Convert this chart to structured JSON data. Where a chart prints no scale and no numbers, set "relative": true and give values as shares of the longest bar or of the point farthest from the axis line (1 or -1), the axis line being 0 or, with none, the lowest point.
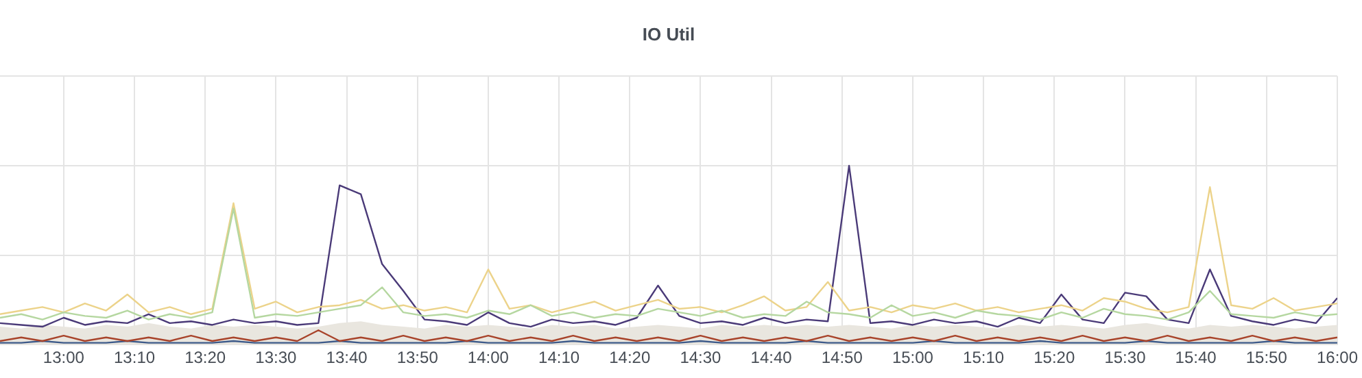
{
  "chart_data": {
    "type": "line",
    "title": "IO Util",
    "relative": true,
    "grid": true,
    "legend": false,
    "marker": "none",
    "xlim": [
      12.85,
      16.0
    ],
    "xticks": [
      {
        "value": 13,
        "label": "13:00"
      },
      {
        "value": 13.1667,
        "label": "13:10"
      },
      {
        "value": 13.3333,
        "label": "13:20"
      },
      {
        "value": 13.5,
        "label": "13:30"
      },
      {
        "value": 13.6667,
        "label": "13:40"
      },
      {
        "value": 13.8333,
        "label": "13:50"
      },
      {
        "value": 14,
        "label": "14:00"
      },
      {
        "value": 14.1667,
        "label": "14:10"
      },
      {
        "value": 14.3333,
        "label": "14:20"
      },
      {
        "value": 14.5,
        "label": "14:30"
      },
      {
        "value": 14.6667,
        "label": "14:40"
      },
      {
        "value": 14.8333,
        "label": "14:50"
      },
      {
        "value": 15,
        "label": "15:00"
      },
      {
        "value": 15.1667,
        "label": "15:10"
      },
      {
        "value": 15.3333,
        "label": "15:20"
      },
      {
        "value": 15.5,
        "label": "15:30"
      },
      {
        "value": 15.6667,
        "label": "15:40"
      },
      {
        "value": 15.8333,
        "label": "15:50"
      },
      {
        "value": 16,
        "label": "16:00"
      }
    ],
    "x": [
      12.85,
      12.9,
      12.95,
      13.0,
      13.05,
      13.1,
      13.15,
      13.2,
      13.25,
      13.3,
      13.35,
      13.4,
      13.45,
      13.5,
      13.55,
      13.6,
      13.65,
      13.7,
      13.75,
      13.8,
      13.85,
      13.9,
      13.95,
      14.0,
      14.05,
      14.1,
      14.15,
      14.2,
      14.25,
      14.3,
      14.35,
      14.4,
      14.45,
      14.5,
      14.55,
      14.6,
      14.65,
      14.7,
      14.75,
      14.8,
      14.85,
      14.9,
      14.95,
      15.0,
      15.05,
      15.1,
      15.15,
      15.2,
      15.25,
      15.3,
      15.35,
      15.4,
      15.45,
      15.5,
      15.55,
      15.6,
      15.65,
      15.7,
      15.75,
      15.8,
      15.85,
      15.9,
      15.95,
      16.0
    ],
    "series": [
      {
        "type": "area",
        "color": "#e9e6df",
        "values": [
          0.1,
          0.09,
          0.11,
          0.1,
          0.09,
          0.11,
          0.1,
          0.12,
          0.1,
          0.09,
          0.11,
          0.1,
          0.11,
          0.1,
          0.09,
          0.1,
          0.12,
          0.13,
          0.11,
          0.1,
          0.09,
          0.11,
          0.1,
          0.11,
          0.1,
          0.09,
          0.11,
          0.1,
          0.11,
          0.09,
          0.1,
          0.11,
          0.1,
          0.09,
          0.11,
          0.1,
          0.11,
          0.1,
          0.11,
          0.1,
          0.11,
          0.1,
          0.09,
          0.11,
          0.1,
          0.11,
          0.1,
          0.09,
          0.11,
          0.1,
          0.11,
          0.1,
          0.09,
          0.11,
          0.12,
          0.1,
          0.09,
          0.11,
          0.1,
          0.11,
          0.1,
          0.09,
          0.1,
          0.11
        ]
      },
      {
        "type": "line",
        "color": "#b5d7a0",
        "values": [
          0.15,
          0.17,
          0.14,
          0.18,
          0.16,
          0.15,
          0.19,
          0.14,
          0.17,
          0.15,
          0.18,
          0.76,
          0.15,
          0.17,
          0.16,
          0.18,
          0.2,
          0.22,
          0.32,
          0.18,
          0.16,
          0.17,
          0.15,
          0.19,
          0.17,
          0.22,
          0.16,
          0.18,
          0.15,
          0.17,
          0.16,
          0.2,
          0.18,
          0.16,
          0.19,
          0.15,
          0.17,
          0.16,
          0.24,
          0.18,
          0.17,
          0.15,
          0.22,
          0.16,
          0.18,
          0.15,
          0.19,
          0.17,
          0.16,
          0.14,
          0.18,
          0.15,
          0.2,
          0.17,
          0.16,
          0.14,
          0.18,
          0.3,
          0.17,
          0.16,
          0.15,
          0.18,
          0.16,
          0.17
        ]
      },
      {
        "type": "line",
        "color": "#ecd38a",
        "values": [
          0.17,
          0.19,
          0.21,
          0.18,
          0.23,
          0.19,
          0.28,
          0.18,
          0.21,
          0.17,
          0.2,
          0.79,
          0.2,
          0.24,
          0.18,
          0.21,
          0.22,
          0.25,
          0.2,
          0.22,
          0.19,
          0.21,
          0.18,
          0.42,
          0.2,
          0.22,
          0.18,
          0.21,
          0.24,
          0.19,
          0.22,
          0.25,
          0.2,
          0.21,
          0.18,
          0.22,
          0.27,
          0.19,
          0.21,
          0.35,
          0.19,
          0.21,
          0.18,
          0.22,
          0.2,
          0.23,
          0.19,
          0.21,
          0.18,
          0.2,
          0.22,
          0.19,
          0.26,
          0.24,
          0.2,
          0.18,
          0.21,
          0.88,
          0.22,
          0.2,
          0.26,
          0.19,
          0.21,
          0.23
        ]
      },
      {
        "type": "line",
        "color": "#4a3a78",
        "values": [
          0.12,
          0.11,
          0.1,
          0.15,
          0.11,
          0.13,
          0.12,
          0.17,
          0.12,
          0.13,
          0.11,
          0.14,
          0.12,
          0.13,
          0.11,
          0.12,
          0.89,
          0.84,
          0.45,
          0.3,
          0.14,
          0.13,
          0.11,
          0.18,
          0.12,
          0.1,
          0.14,
          0.12,
          0.13,
          0.11,
          0.15,
          0.33,
          0.16,
          0.12,
          0.13,
          0.11,
          0.15,
          0.12,
          0.14,
          0.13,
          1.0,
          0.12,
          0.13,
          0.11,
          0.14,
          0.12,
          0.13,
          0.1,
          0.15,
          0.12,
          0.28,
          0.14,
          0.12,
          0.29,
          0.27,
          0.14,
          0.12,
          0.42,
          0.16,
          0.13,
          0.11,
          0.14,
          0.12,
          0.26
        ]
      },
      {
        "type": "line",
        "color": "#a8432a",
        "values": [
          0.02,
          0.04,
          0.02,
          0.05,
          0.02,
          0.04,
          0.02,
          0.04,
          0.02,
          0.05,
          0.02,
          0.04,
          0.02,
          0.04,
          0.02,
          0.08,
          0.02,
          0.04,
          0.02,
          0.05,
          0.02,
          0.04,
          0.02,
          0.05,
          0.02,
          0.04,
          0.02,
          0.05,
          0.02,
          0.04,
          0.02,
          0.04,
          0.02,
          0.05,
          0.02,
          0.04,
          0.02,
          0.04,
          0.02,
          0.05,
          0.02,
          0.04,
          0.02,
          0.04,
          0.02,
          0.05,
          0.02,
          0.04,
          0.02,
          0.04,
          0.02,
          0.05,
          0.02,
          0.04,
          0.02,
          0.05,
          0.02,
          0.04,
          0.02,
          0.05,
          0.02,
          0.04,
          0.02,
          0.04
        ]
      },
      {
        "type": "line",
        "color": "#3d5a8a",
        "values": [
          0.01,
          0.01,
          0.02,
          0.01,
          0.01,
          0.01,
          0.02,
          0.01,
          0.01,
          0.01,
          0.01,
          0.02,
          0.01,
          0.01,
          0.01,
          0.01,
          0.02,
          0.01,
          0.01,
          0.01,
          0.01,
          0.01,
          0.02,
          0.01,
          0.01,
          0.01,
          0.01,
          0.02,
          0.01,
          0.01,
          0.01,
          0.01,
          0.01,
          0.02,
          0.01,
          0.01,
          0.01,
          0.01,
          0.02,
          0.01,
          0.01,
          0.01,
          0.01,
          0.01,
          0.02,
          0.01,
          0.01,
          0.01,
          0.01,
          0.02,
          0.01,
          0.01,
          0.01,
          0.01,
          0.02,
          0.01,
          0.01,
          0.01,
          0.01,
          0.01,
          0.02,
          0.01,
          0.01,
          0.01
        ]
      }
    ]
  }
}
